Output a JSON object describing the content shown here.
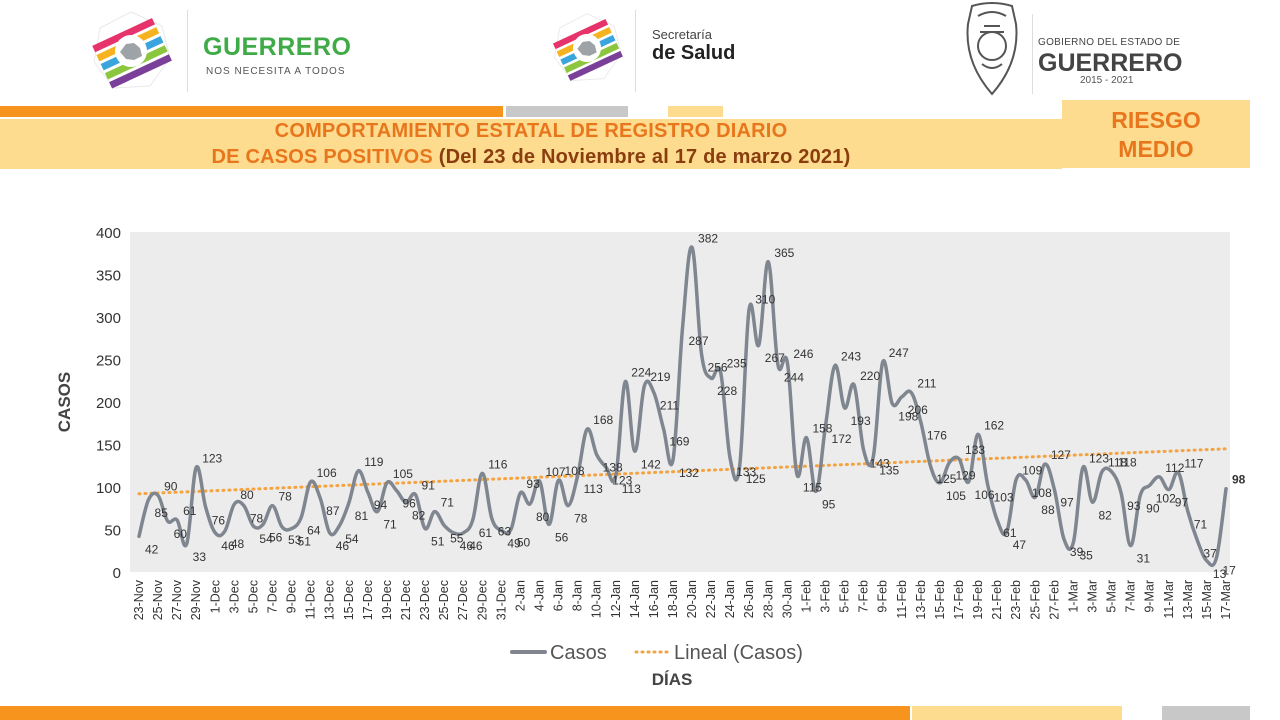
{
  "header": {
    "logo1": {
      "name": "GUERRERO",
      "tagline": "NOS NECESITA A TODOS"
    },
    "logo2": {
      "line1": "Secretaría",
      "line2": "de Salud"
    },
    "logo3": {
      "line1": "GOBIERNO DEL ESTADO DE",
      "line2": "GUERRERO",
      "line3": "2015 - 2021"
    },
    "title_line1": "COMPORTAMIENTO ESTATAL DE REGISTRO DIARIO",
    "title_line2a": "DE CASOS POSITIVOS",
    "title_line2b": " (Del 23 de Noviembre al 17 de marzo 2021)",
    "risk_line1": "RIESGO",
    "risk_line2": "MEDIO",
    "colors": {
      "orange": "#f7941d",
      "light_yellow": "#fddc8f",
      "gray": "#c8c8c8",
      "dark_orange": "#8a3d0f"
    }
  },
  "chart_data": {
    "type": "line",
    "xlabel": "DÍAS",
    "ylabel": "CASOS",
    "ylim": [
      0,
      400
    ],
    "yticks": [
      0,
      50,
      100,
      150,
      200,
      250,
      300,
      350,
      400
    ],
    "x_tick_labels": [
      "23-Nov",
      "25-Nov",
      "27-Nov",
      "29-Nov",
      "1-Dec",
      "3-Dec",
      "5-Dec",
      "7-Dec",
      "9-Dec",
      "11-Dec",
      "13-Dec",
      "15-Dec",
      "17-Dec",
      "19-Dec",
      "21-Dec",
      "23-Dec",
      "25-Dec",
      "27-Dec",
      "29-Dec",
      "31-Dec",
      "2-Jan",
      "4-Jan",
      "6-Jan",
      "8-Jan",
      "10-Jan",
      "12-Jan",
      "14-Jan",
      "16-Jan",
      "18-Jan",
      "20-Jan",
      "22-Jan",
      "24-Jan",
      "26-Jan",
      "28-Jan",
      "30-Jan",
      "1-Feb",
      "3-Feb",
      "5-Feb",
      "7-Feb",
      "9-Feb",
      "11-Feb",
      "13-Feb",
      "15-Feb",
      "17-Feb",
      "19-Feb",
      "21-Feb",
      "23-Feb",
      "25-Feb",
      "27-Feb",
      "1-Mar",
      "3-Mar",
      "5-Mar",
      "7-Mar",
      "9-Mar",
      "11-Mar",
      "13-Mar",
      "15-Mar",
      "17-Mar"
    ],
    "series": [
      {
        "name": "Casos",
        "color": "#7f8690",
        "style": "line",
        "values": [
          42,
          85,
          90,
          60,
          61,
          33,
          123,
          76,
          46,
          48,
          80,
          78,
          54,
          56,
          78,
          53,
          51,
          64,
          106,
          87,
          46,
          54,
          81,
          119,
          94,
          71,
          105,
          96,
          82,
          91,
          51,
          71,
          55,
          46,
          46,
          61,
          116,
          63,
          49,
          50,
          93,
          80,
          107,
          56,
          108,
          78,
          113,
          168,
          138,
          123,
          113,
          224,
          142,
          219,
          211,
          169,
          132,
          287,
          382,
          256,
          228,
          235,
          133,
          125,
          310,
          267,
          365,
          244,
          246,
          115,
          158,
          95,
          172,
          243,
          193,
          220,
          143,
          135,
          247,
          198,
          206,
          211,
          176,
          125,
          105,
          129,
          133,
          106,
          162,
          103,
          61,
          47,
          109,
          108,
          88,
          127,
          97,
          39,
          35,
          123,
          82,
          118,
          118,
          93,
          31,
          90,
          102,
          112,
          97,
          117,
          71,
          37,
          13,
          17,
          98
        ]
      },
      {
        "name": "Lineal (Casos)",
        "color": "#f4a340",
        "style": "dotted",
        "trend": [
          92,
          145
        ]
      }
    ],
    "legend_position": "bottom",
    "grid": false,
    "plot_background": "#ececec"
  }
}
